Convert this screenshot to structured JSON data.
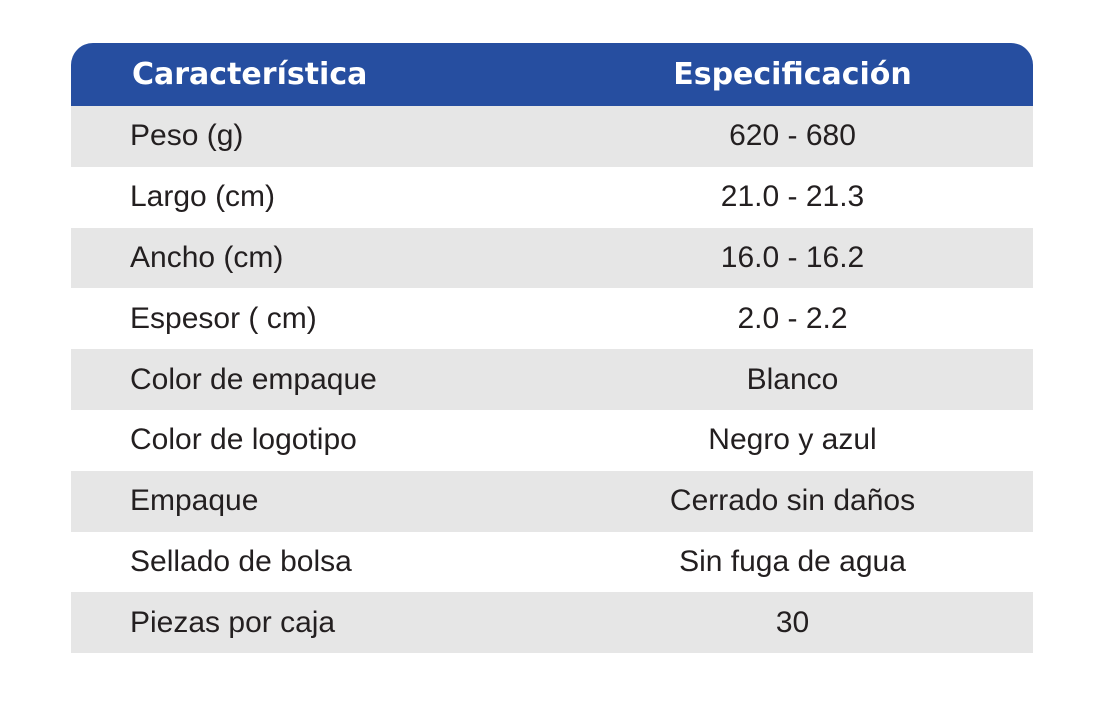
{
  "header": {
    "characteristic": "Característica",
    "specification": "Especificación"
  },
  "rows": [
    {
      "label": "Peso (g)",
      "value": "620 - 680"
    },
    {
      "label": "Largo (cm)",
      "value": "21.0 - 21.3"
    },
    {
      "label": "Ancho (cm)",
      "value": "16.0 - 16.2"
    },
    {
      "label": "Espesor ( cm)",
      "value": "2.0 - 2.2"
    },
    {
      "label": "Color de empaque",
      "value": "Blanco"
    },
    {
      "label": "Color de logotipo",
      "value": "Negro y azul"
    },
    {
      "label": "Empaque",
      "value": "Cerrado sin daños"
    },
    {
      "label": "Sellado de bolsa",
      "value": "Sin fuga de agua"
    },
    {
      "label": "Piezas por caja",
      "value": "30"
    }
  ],
  "colors": {
    "header_bg": "#264ea0",
    "shade_row": "#e6e6e6",
    "plain_row": "#ffffff"
  }
}
